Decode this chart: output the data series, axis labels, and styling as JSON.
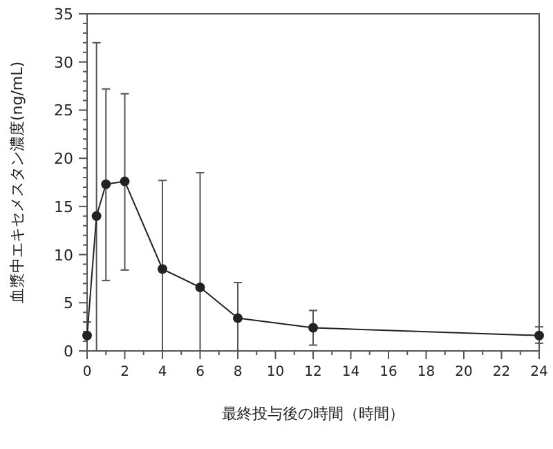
{
  "chart_data": {
    "type": "line",
    "xlabel": "最終投与後の時間（時間）",
    "ylabel": "血漿中エキセメスタン濃度(ng/mL)",
    "x": [
      0,
      0.5,
      1,
      2,
      4,
      6,
      8,
      12,
      24
    ],
    "series": [
      {
        "color": "#222222",
        "values": [
          1.6,
          14.0,
          17.3,
          17.6,
          8.5,
          6.6,
          3.4,
          2.4,
          1.6
        ],
        "errors": [
          [
            0,
            3
          ],
          [
            0,
            32
          ],
          [
            7.3,
            27.2
          ],
          [
            8.4,
            26.7
          ],
          [
            0,
            17.7
          ],
          [
            0,
            18.5
          ],
          [
            0,
            7.1
          ],
          [
            0.6,
            4.2
          ],
          [
            0.8,
            2.5
          ]
        ]
      }
    ],
    "xlim": [
      0,
      24
    ],
    "xticks": [
      0,
      2,
      4,
      6,
      8,
      10,
      12,
      14,
      16,
      18,
      20,
      22,
      24
    ],
    "ylim": [
      0,
      35
    ],
    "yticks": [
      0,
      5,
      10,
      15,
      20,
      25,
      30,
      35
    ],
    "marker": "circle",
    "line_style": "solid",
    "grid": false
  }
}
